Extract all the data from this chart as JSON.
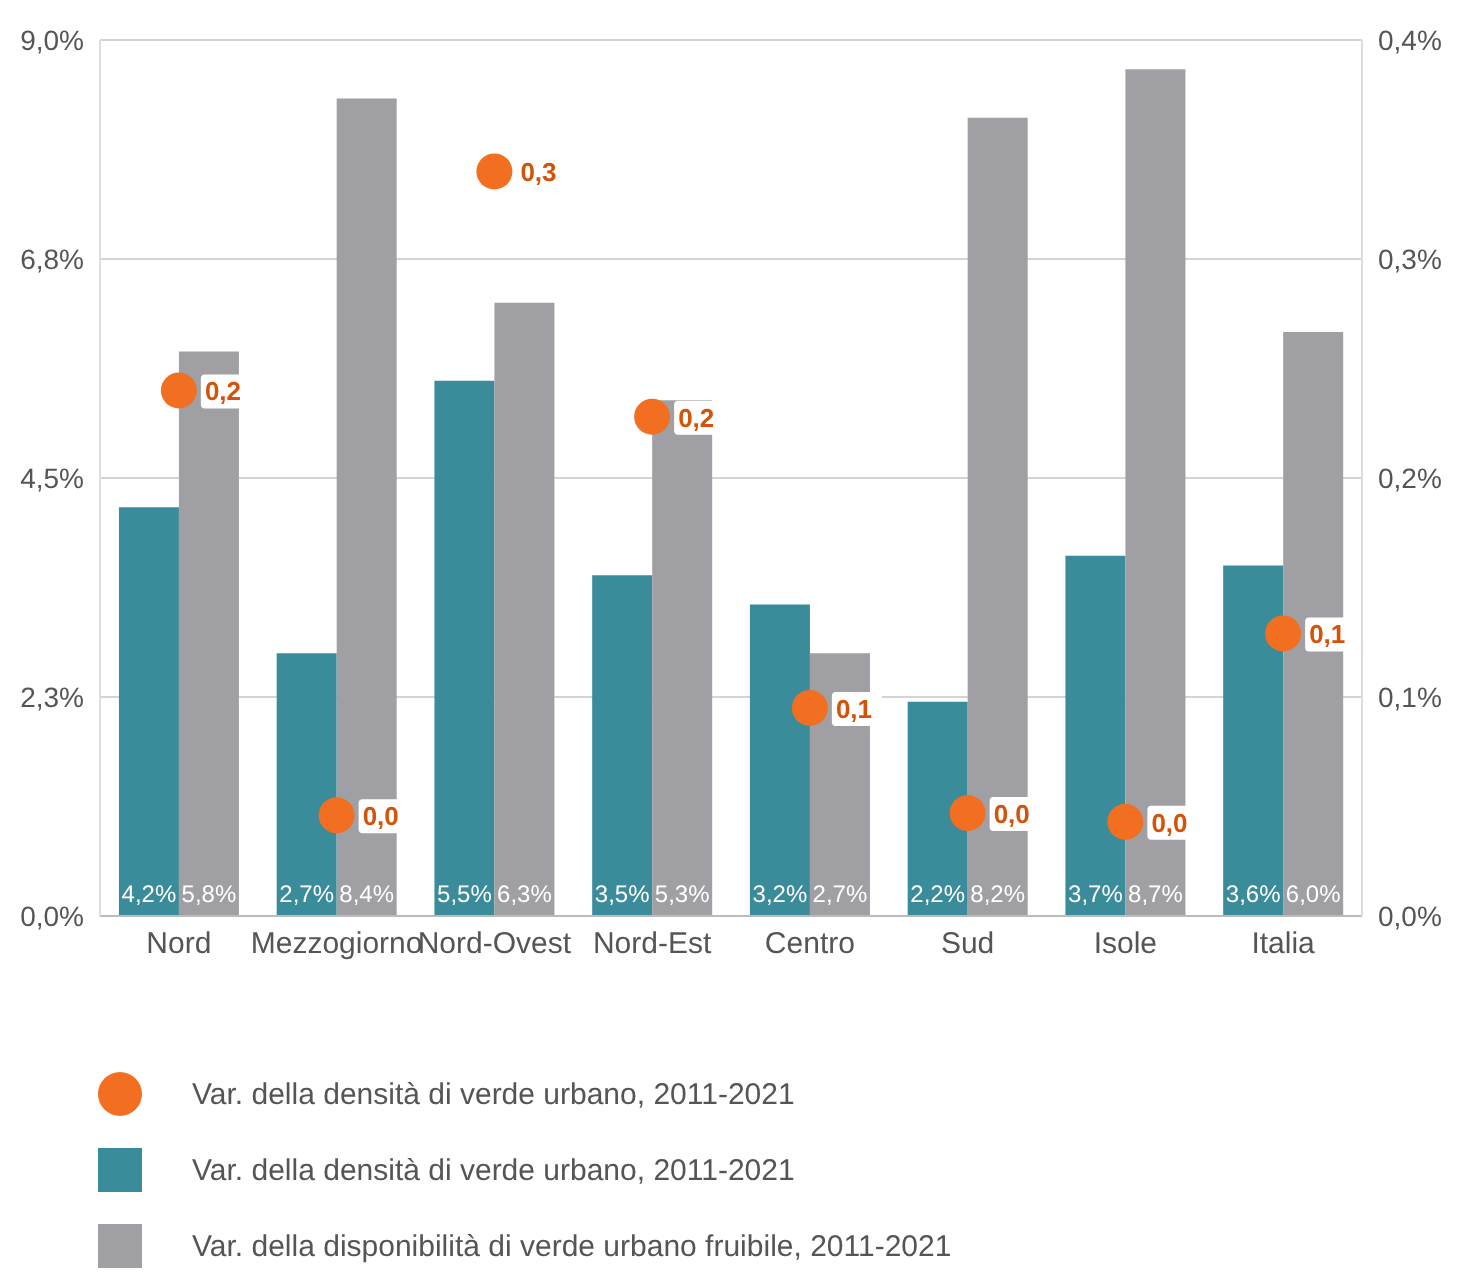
{
  "chart_data": {
    "type": "bar",
    "categories": [
      "Nord",
      "Mezzogiorno",
      "Nord-Ovest",
      "Nord-Est",
      "Centro",
      "Sud",
      "Isole",
      "Italia"
    ],
    "series": [
      {
        "name": "Var. della densità di verde urbano, 2011-2021",
        "type": "scatter",
        "axis": "y2",
        "color": "#f26f21",
        "values": [
          0.24,
          0.046,
          0.34,
          0.228,
          0.095,
          0.047,
          0.043,
          0.129
        ],
        "value_labels": [
          "0,2",
          "0,0",
          "0,3",
          "0,2",
          "0,1",
          "0,0",
          "0,0",
          "0,1"
        ]
      },
      {
        "name": "Var. della densità di verde urbano, 2011-2021",
        "color": "#3a8c9b",
        "values": [
          4.2,
          2.7,
          5.5,
          3.5,
          3.2,
          2.2,
          3.7,
          3.6
        ],
        "value_labels": [
          "4,2%",
          "2,7%",
          "5,5%",
          "3,5%",
          "3,2%",
          "2,2%",
          "3,7%",
          "3,6%"
        ]
      },
      {
        "name": "Var. della disponibilità di verde urbano fruibile, 2011-2021",
        "color": "#a0a0a4",
        "values": [
          5.8,
          8.4,
          6.3,
          5.3,
          2.7,
          8.2,
          8.7,
          6.0
        ],
        "value_labels": [
          "5,8%",
          "8,4%",
          "6,3%",
          "5,3%",
          "2,7%",
          "8,2%",
          "8,7%",
          "6,0%"
        ]
      }
    ],
    "ylim": [
      0,
      9
    ],
    "yticks": [
      {
        "value": 0,
        "label": "0,0%"
      },
      {
        "value": 2.25,
        "label": "2,3%"
      },
      {
        "value": 4.5,
        "label": "4,5%"
      },
      {
        "value": 6.75,
        "label": "6,8%"
      },
      {
        "value": 9,
        "label": "9,0%"
      }
    ],
    "y2lim": [
      0,
      0.4
    ],
    "y2ticks": [
      {
        "value": 0,
        "label": "0,0%"
      },
      {
        "value": 0.1,
        "label": "0,1%"
      },
      {
        "value": 0.2,
        "label": "0,2%"
      },
      {
        "value": 0.3,
        "label": "0,3%"
      },
      {
        "value": 0.4,
        "label": "0,4%"
      }
    ],
    "grid": "y",
    "legend": "bottom",
    "marker": "circle"
  }
}
